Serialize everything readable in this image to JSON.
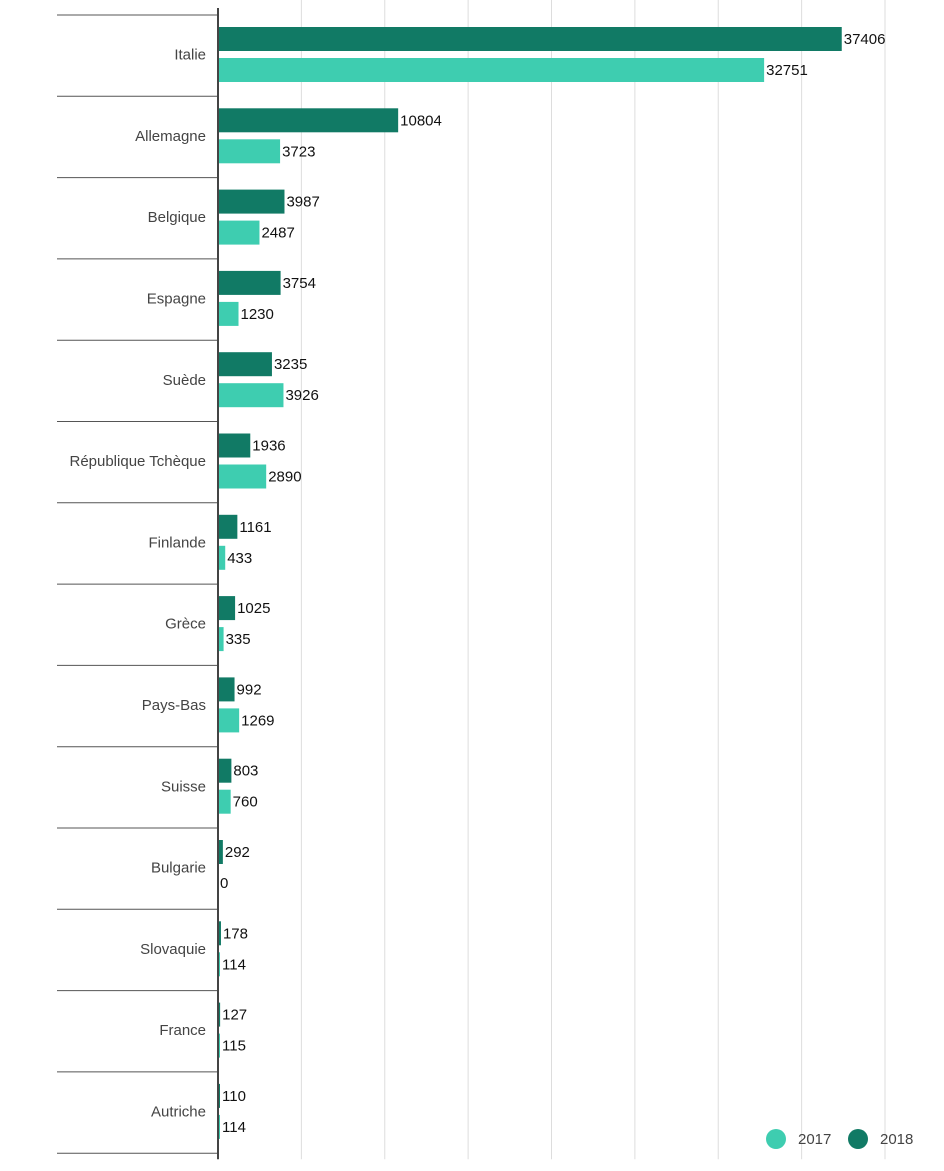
{
  "colors": {
    "series_2017": "#3ecdb0",
    "series_2018": "#117a65",
    "gridline": "#dddddd",
    "axis": "#444444",
    "separator": "#555555"
  },
  "legend": {
    "items": [
      {
        "label": "2017",
        "color": "#3ecdb0"
      },
      {
        "label": "2018",
        "color": "#117a65"
      }
    ],
    "position": "bottom-right"
  },
  "chart_data": {
    "type": "bar",
    "orientation": "horizontal",
    "title": "",
    "xlabel": "",
    "ylabel": "",
    "xlim": [
      0,
      40000
    ],
    "grid": true,
    "categories": [
      "Italie",
      "Allemagne",
      "Belgique",
      "Espagne",
      "Suède",
      "République Tchèque",
      "Finlande",
      "Grèce",
      "Pays-Bas",
      "Suisse",
      "Bulgarie",
      "Slovaquie",
      "France",
      "Autriche"
    ],
    "series": [
      {
        "name": "2018",
        "color": "#117a65",
        "values": [
          37406,
          10804,
          3987,
          3754,
          3235,
          1936,
          1161,
          1025,
          992,
          803,
          292,
          178,
          127,
          110
        ]
      },
      {
        "name": "2017",
        "color": "#3ecdb0",
        "values": [
          32751,
          3723,
          2487,
          1230,
          3926,
          2890,
          433,
          335,
          1269,
          760,
          0,
          114,
          115,
          114
        ]
      }
    ]
  }
}
